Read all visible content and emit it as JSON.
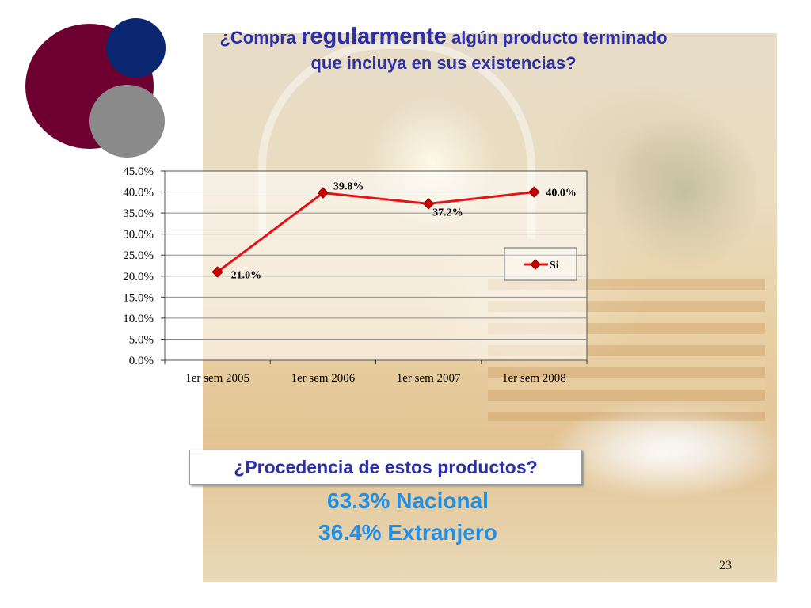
{
  "slide": {
    "title_pre": "¿Compra",
    "title_emph": "regularmente",
    "title_post": "algún producto terminado",
    "title_line2": "que incluya en sus existencias?",
    "question": "¿Procedencia de estos productos?",
    "stats": [
      {
        "value": "63.3%",
        "label": "Nacional"
      },
      {
        "value": "36.4%",
        "label": "Extranjero"
      }
    ],
    "page_number": "23"
  },
  "colors": {
    "title": "#2b2fa8",
    "stat_text": "#1f8fe8",
    "series_line": "#e51313",
    "marker": "#cc0000",
    "circle_maroon": "#6d0030",
    "circle_navy": "#0b2670",
    "circle_gray": "#8a8a8a"
  },
  "chart_data": {
    "type": "line",
    "categories": [
      "1er sem 2005",
      "1er sem 2006",
      "1er sem 2007",
      "1er sem 2008"
    ],
    "series": [
      {
        "name": "Si",
        "values": [
          21.0,
          39.8,
          37.2,
          40.0
        ],
        "data_labels": [
          "21.0%",
          "39.8%",
          "37.2%",
          "40.0%"
        ]
      }
    ],
    "y_ticks": [
      "0.0%",
      "5.0%",
      "10.0%",
      "15.0%",
      "20.0%",
      "25.0%",
      "30.0%",
      "35.0%",
      "40.0%",
      "45.0%"
    ],
    "ylim": [
      0,
      45
    ],
    "grid": true,
    "legend_position": "right",
    "marker": "diamond"
  }
}
